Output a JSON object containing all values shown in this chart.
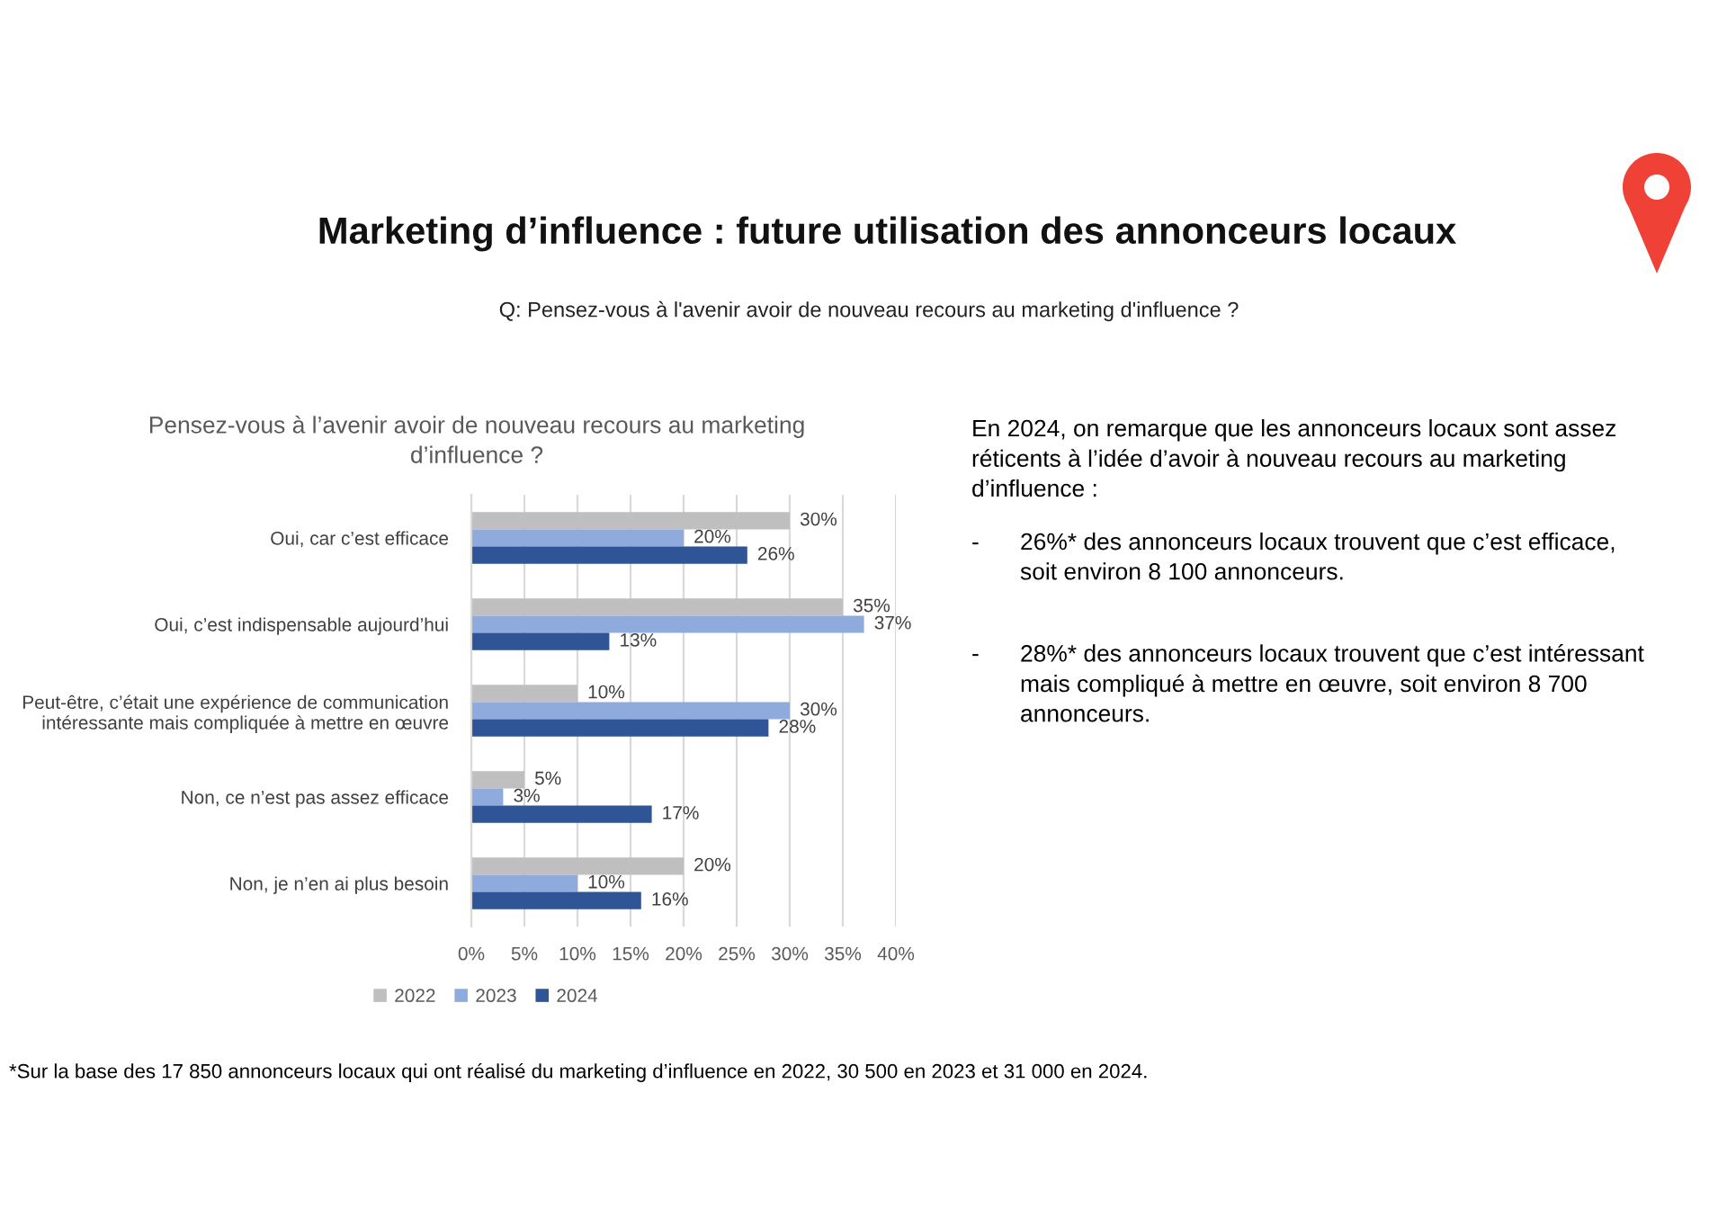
{
  "chart_data": {
    "type": "bar",
    "orientation": "horizontal",
    "title": "Marketing d’influence : future utilisation des annonceurs locaux",
    "subtitle": "Q: Pensez-vous à l'avenir avoir de nouveau recours au marketing d'influence ?",
    "categories": [
      "Oui, car c’est efficace",
      "Oui, c’est indispensable aujourd’hui",
      "Peut-être, c’était une expérience de communication intéressante mais compliquée à mettre en œuvre",
      "Non, ce n’est pas assez efficace",
      "Non, je n’en ai plus besoin"
    ],
    "series": [
      {
        "name": "2022",
        "color": "#bfbfbf",
        "values": [
          30,
          35,
          10,
          5,
          20
        ],
        "value_labels": [
          "30%",
          "35%",
          "10%",
          "5%",
          "20%"
        ]
      },
      {
        "name": "2023",
        "color": "#8faadc",
        "values": [
          20,
          37,
          30,
          3,
          10
        ],
        "value_labels": [
          "20%",
          "37%",
          "30%",
          "3%",
          "10%"
        ]
      },
      {
        "name": "2024",
        "color": "#2f5597",
        "values": [
          26,
          13,
          28,
          17,
          16
        ],
        "value_labels": [
          "26%",
          "13%",
          "28%",
          "17%",
          "16%"
        ]
      }
    ],
    "xlim": [
      0,
      40
    ],
    "xticks": [
      {
        "value": 0,
        "label": "0%"
      },
      {
        "value": 5,
        "label": "5%"
      },
      {
        "value": 10,
        "label": "10%"
      },
      {
        "value": 15,
        "label": "15%"
      },
      {
        "value": 20,
        "label": "20%"
      },
      {
        "value": 25,
        "label": "25%"
      },
      {
        "value": 30,
        "label": "30%"
      },
      {
        "value": 35,
        "label": "35%"
      },
      {
        "value": 40,
        "label": "40%"
      }
    ],
    "grid": "x",
    "legend": "bottom",
    "annotations": [
      "Pensez-vous à l’avenir avoir de nouveau recours au marketing d’influence ?",
      "En 2024, on remarque que les annonceurs locaux sont assez réticents à l’idée d’avoir à nouveau recours au marketing d’influence :",
      "-",
      "26%* des annonceurs locaux trouvent que c’est efficace, soit environ 8 100 annonceurs.",
      "-",
      "28%* des annonceurs locaux trouvent que c’est intéressant mais compliqué à mettre en œuvre, soit environ 8 700 annonceurs.",
      "*Sur la base des 17 850 annonceurs locaux qui ont réalisé du marketing d’influence en 2022, 30 500 en 2023 et 31 000 en 2024."
    ]
  }
}
